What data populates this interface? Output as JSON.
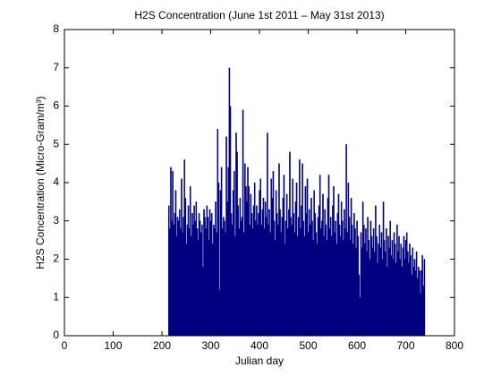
{
  "chart_data": {
    "type": "bar",
    "title": "H2S Concentration (June 1st 2011 – May 31st 2013)",
    "x_label": "Julian day",
    "y_label": "H2S Concentration  (Micro-Gram/m³)",
    "color": "#000080",
    "xlim": [
      0,
      800
    ],
    "xticks": [
      0,
      100,
      200,
      300,
      400,
      500,
      600,
      700,
      800
    ],
    "ylim": [
      0,
      8
    ],
    "yticks": [
      0,
      1,
      2,
      3,
      4,
      5,
      6,
      7,
      8
    ],
    "x": [
      214,
      216,
      218,
      220,
      222,
      224,
      226,
      228,
      230,
      232,
      234,
      236,
      238,
      240,
      242,
      244,
      246,
      248,
      250,
      252,
      254,
      256,
      258,
      260,
      262,
      264,
      266,
      268,
      270,
      272,
      274,
      276,
      278,
      280,
      282,
      284,
      286,
      288,
      290,
      292,
      294,
      296,
      298,
      300,
      302,
      304,
      306,
      308,
      310,
      312,
      314,
      316,
      318,
      320,
      322,
      324,
      326,
      328,
      330,
      332,
      334,
      336,
      338,
      340,
      342,
      344,
      346,
      348,
      350,
      352,
      354,
      356,
      358,
      360,
      362,
      364,
      366,
      368,
      370,
      372,
      374,
      376,
      378,
      380,
      382,
      384,
      386,
      388,
      390,
      392,
      394,
      396,
      398,
      400,
      402,
      404,
      406,
      408,
      410,
      412,
      414,
      416,
      418,
      420,
      422,
      424,
      426,
      428,
      430,
      432,
      434,
      436,
      438,
      440,
      442,
      444,
      446,
      448,
      450,
      452,
      454,
      456,
      458,
      460,
      462,
      464,
      466,
      468,
      470,
      472,
      474,
      476,
      478,
      480,
      482,
      484,
      486,
      488,
      490,
      492,
      494,
      496,
      498,
      500,
      502,
      504,
      506,
      508,
      510,
      512,
      514,
      516,
      518,
      520,
      522,
      524,
      526,
      528,
      530,
      532,
      534,
      536,
      538,
      540,
      542,
      544,
      546,
      548,
      550,
      552,
      554,
      556,
      558,
      560,
      562,
      564,
      566,
      568,
      570,
      572,
      574,
      576,
      578,
      580,
      582,
      584,
      586,
      588,
      590,
      592,
      594,
      596,
      598,
      600,
      602,
      604,
      606,
      608,
      610,
      612,
      614,
      616,
      618,
      620,
      622,
      624,
      626,
      628,
      630,
      632,
      634,
      636,
      638,
      640,
      642,
      644,
      646,
      648,
      650,
      652,
      654,
      656,
      658,
      660,
      662,
      664,
      666,
      668,
      670,
      672,
      674,
      676,
      678,
      680,
      682,
      684,
      686,
      688,
      690,
      692,
      694,
      696,
      698,
      700,
      702,
      704,
      706,
      708,
      710,
      712,
      714,
      716,
      718,
      720,
      722,
      724,
      726,
      728,
      730,
      732,
      734,
      736,
      738
    ],
    "values": [
      3.4,
      2.8,
      4.4,
      3.0,
      4.3,
      2.9,
      3.2,
      3.8,
      2.6,
      3.1,
      3.0,
      3.3,
      2.8,
      4.1,
      2.7,
      3.1,
      4.6,
      3.6,
      2.4,
      2.9,
      3.4,
      2.8,
      3.9,
      2.6,
      3.2,
      2.9,
      3.4,
      3.0,
      3.5,
      2.8,
      2.5,
      3.2,
      3.0,
      2.7,
      2.9,
      1.8,
      3.3,
      3.1,
      2.8,
      3.4,
      3.1,
      2.5,
      3.3,
      3.0,
      3.2,
      2.4,
      2.9,
      2.8,
      3.5,
      2.7,
      5.4,
      4.0,
      1.2,
      3.8,
      4.4,
      2.8,
      3.1,
      3.0,
      2.7,
      5.2,
      3.5,
      4.4,
      7.0,
      6.0,
      3.2,
      2.9,
      3.8,
      4.3,
      2.6,
      5.3,
      4.8,
      3.4,
      2.8,
      3.6,
      3.0,
      3.1,
      5.9,
      2.7,
      4.5,
      3.9,
      3.5,
      4.4,
      3.9,
      2.9,
      3.7,
      3.2,
      2.8,
      3.4,
      4.0,
      3.0,
      3.4,
      2.9,
      3.2,
      3.8,
      4.1,
      2.9,
      3.3,
      3.6,
      2.8,
      3.5,
      3.1,
      5.3,
      2.9,
      3.3,
      2.7,
      4.1,
      3.6,
      4.3,
      3.0,
      2.5,
      3.8,
      3.2,
      2.9,
      4.5,
      3.3,
      2.7,
      3.1,
      3.6,
      4.2,
      2.4,
      3.0,
      3.7,
      2.8,
      3.3,
      4.8,
      3.1,
      2.9,
      4.1,
      3.2,
      2.7,
      3.5,
      4.0,
      2.6,
      3.1,
      4.6,
      2.8,
      3.4,
      4.5,
      3.0,
      2.6,
      3.9,
      3.2,
      4.1,
      2.7,
      3.3,
      2.9,
      3.6,
      3.0,
      2.5,
      3.8,
      3.2,
      2.7,
      2.4,
      3.1,
      3.4,
      4.2,
      2.8,
      3.0,
      3.7,
      2.6,
      3.3,
      2.9,
      2.5,
      3.6,
      4.2,
      2.8,
      3.1,
      2.6,
      3.4,
      3.9,
      2.7,
      3.0,
      2.4,
      3.2,
      3.7,
      2.9,
      2.6,
      3.5,
      3.0,
      2.5,
      3.3,
      2.8,
      5.0,
      2.7,
      4.0,
      3.1,
      2.5,
      3.6,
      2.9,
      2.4,
      3.2,
      2.8,
      2.3,
      3.0,
      2.6,
      1.6,
      1.0,
      2.7,
      2.3,
      3.5,
      2.9,
      2.4,
      2.8,
      2.2,
      3.1,
      2.5,
      2.0,
      3.0,
      2.6,
      2.3,
      2.8,
      2.2,
      3.4,
      2.6,
      1.9,
      2.4,
      2.9,
      2.3,
      2.7,
      2.0,
      3.5,
      2.5,
      2.2,
      2.8,
      1.8,
      2.6,
      2.3,
      3.0,
      2.1,
      2.5,
      2.0,
      2.7,
      2.4,
      1.9,
      2.9,
      2.2,
      2.6,
      2.0,
      2.4,
      1.8,
      2.3,
      2.6,
      2.0,
      2.5,
      2.7,
      2.2,
      1.9,
      2.4,
      2.1,
      1.6,
      2.3,
      1.8,
      2.0,
      1.7,
      2.2,
      1.5,
      1.8,
      1.7,
      1.1,
      1.7,
      2.1,
      1.3,
      2.0
    ]
  }
}
